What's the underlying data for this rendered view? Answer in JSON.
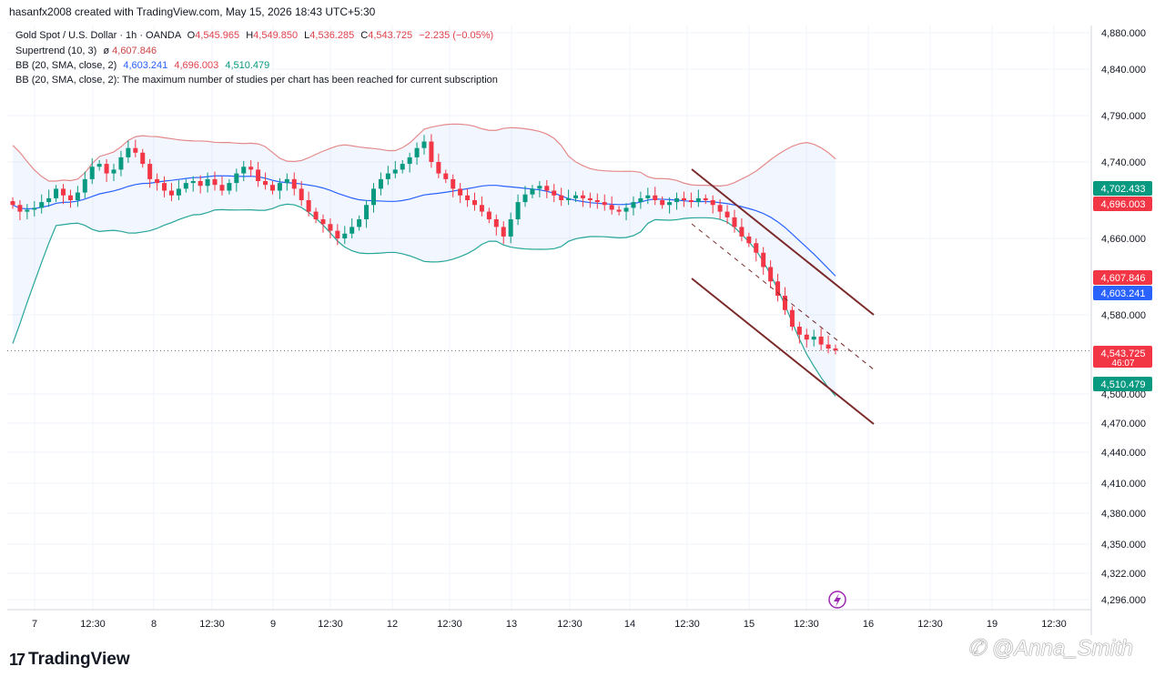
{
  "header": {
    "created_by": "hasanfx2008 created with TradingView.com, May 15, 2026 18:43 UTC+5:30"
  },
  "legend": {
    "symbol": "Gold Spot / U.S. Dollar · 1h · OANDA",
    "o_label": "O",
    "o": "4,545.965",
    "h_label": "H",
    "h": "4,549.850",
    "l_label": "L",
    "l": "4,536.285",
    "c_label": "C",
    "c": "4,543.725",
    "change": "−2.235 (−0.05%)",
    "supertrend": "Supertrend (10, 3)",
    "supertrend_icon": "ø",
    "supertrend_value": "4,607.846",
    "bb": "BB (20, SMA, close, 2)",
    "bb_basis": "4,603.241",
    "bb_upper": "4,696.003",
    "bb_lower": "4,510.479",
    "bb2": "BB (20, SMA, close, 2): The maximum number of studies per chart has been reached for current subscription"
  },
  "branding": {
    "logo_text": "TradingView",
    "logo_icon": "tradingview-logo-icon",
    "watermark": "✆ @Anna_Smith"
  },
  "colors": {
    "up": "#089981",
    "down": "#f23645",
    "basis": "#2962ff",
    "bb_upper": "#e58a8a",
    "bb_lower": "#26a69a",
    "trend": "#7b2a2a"
  },
  "chart_data": {
    "type": "candlestick",
    "title": "Gold Spot / U.S. Dollar · 1h · OANDA",
    "y_tick_labels": [
      "4,880.000",
      "4,840.000",
      "4,790.000",
      "4,740.000",
      "4,660.000",
      "4,580.000",
      "4,500.000",
      "4,470.000",
      "4,440.000",
      "4,410.000",
      "4,380.000",
      "4,350.000",
      "4,322.000",
      "4,296.000"
    ],
    "x_tick_labels": [
      "7",
      "12:30",
      "8",
      "12:30",
      "9",
      "12:30",
      "12",
      "12:30",
      "13",
      "12:30",
      "14",
      "12:30",
      "15",
      "12:30",
      "16",
      "12:30",
      "19",
      "12:30"
    ],
    "price_badges": [
      {
        "label": "4,702.433",
        "value": 4702.433,
        "color": "#089981"
      },
      {
        "label": "4,696.003",
        "value": 4696.003,
        "color": "#f23645"
      },
      {
        "label": "4,607.846",
        "value": 4607.846,
        "color": "#f23645"
      },
      {
        "label": "4,603.241",
        "value": 4603.241,
        "color": "#2962ff"
      },
      {
        "label": "4,543.725",
        "value": 4543.725,
        "color": "#f23645",
        "sub": "46:07"
      },
      {
        "label": "4,510.479",
        "value": 4510.479,
        "color": "#089981"
      }
    ],
    "closes": [
      4695,
      4688,
      4690,
      4692,
      4698,
      4702,
      4712,
      4705,
      4700,
      4708,
      4722,
      4735,
      4738,
      4728,
      4732,
      4745,
      4755,
      4750,
      4738,
      4722,
      4718,
      4710,
      4705,
      4712,
      4718,
      4720,
      4715,
      4722,
      4716,
      4710,
      4718,
      4728,
      4735,
      4732,
      4720,
      4716,
      4710,
      4718,
      4722,
      4712,
      4700,
      4688,
      4680,
      4675,
      4668,
      4660,
      4665,
      4672,
      4680,
      4695,
      4712,
      4722,
      4728,
      4732,
      4738,
      4745,
      4755,
      4762,
      4740,
      4728,
      4722,
      4712,
      4705,
      4700,
      4695,
      4688,
      4680,
      4672,
      4662,
      4680,
      4698,
      4706,
      4712,
      4715,
      4710,
      4705,
      4700,
      4702,
      4705,
      4702,
      4700,
      4698,
      4695,
      4690,
      4688,
      4692,
      4698,
      4702,
      4705,
      4700,
      4695,
      4698,
      4702,
      4700,
      4698,
      4702,
      4700,
      4695,
      4688,
      4682,
      4672,
      4662,
      4655,
      4645,
      4630,
      4615,
      4600,
      4585,
      4568,
      4560,
      4555,
      4558,
      4550,
      4546,
      4544
    ],
    "bb_upper_start": 4764,
    "bb_lower_start": 4545
  }
}
